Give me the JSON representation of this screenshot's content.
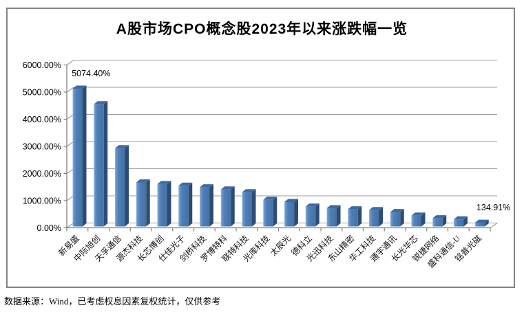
{
  "page": {
    "source_note": "数据来源：Wind，已考虑权息因素复权统计，仅供参考"
  },
  "chart_data": {
    "type": "bar",
    "title": "A股市场CPO概念股2023年以来涨跌幅一览",
    "xlabel": "",
    "ylabel": "",
    "unit": "%",
    "ylim": [
      0,
      6000
    ],
    "ytick_step": 1000,
    "ytick_labels": [
      "0.00%",
      "1000.00%",
      "2000.00%",
      "3000.00%",
      "4000.00%",
      "5000.00%",
      "6000.00%"
    ],
    "grid": true,
    "legend": "none",
    "categories": [
      "新易盛",
      "中际旭创",
      "天孚通信",
      "源杰科技",
      "长芯博创",
      "仕佳光子",
      "剑桥科技",
      "罗博特科",
      "联特科技",
      "光库科技",
      "太辰光",
      "德科立",
      "光迅科技",
      "东山精密",
      "华工科技",
      "通宇通讯",
      "长光华芯",
      "锐捷网络",
      "盛科通信-U",
      "铭普光磁"
    ],
    "values": [
      5074.4,
      4500,
      2880,
      1620,
      1560,
      1500,
      1440,
      1360,
      1260,
      980,
      900,
      730,
      670,
      630,
      600,
      530,
      400,
      300,
      260,
      134.91
    ],
    "data_labels": [
      {
        "index": 0,
        "text": "5074.40%"
      },
      {
        "index": 19,
        "text": "134.91%"
      }
    ],
    "style": {
      "bar_front": "#4E7FBA",
      "bar_front_highlight": "#9CBCE0",
      "bar_front_dark": "#46719F",
      "bar_side": "#2C4C77",
      "bar_top": "#3E69A3",
      "gridline": "#9B9B9B",
      "axis": "#808080",
      "frame_border": "#828282"
    }
  }
}
